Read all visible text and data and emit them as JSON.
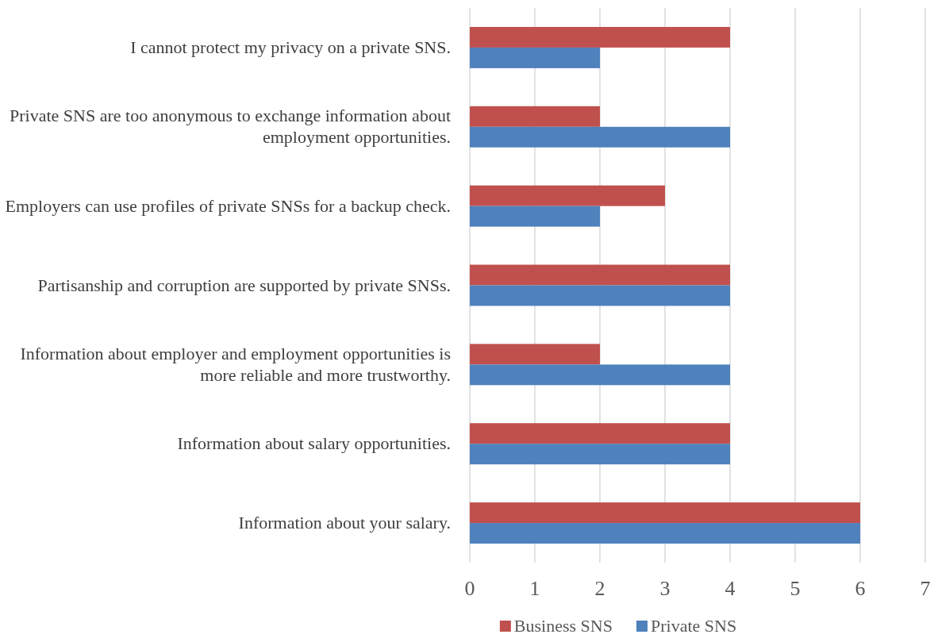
{
  "chart_data": {
    "type": "bar",
    "orientation": "horizontal",
    "categories": [
      "I cannot protect my privacy on a private SNS.",
      "Private SNS are too anonymous to exchange information about employment opportunities.",
      "Employers can use profiles of private SNSs for a backup check.",
      "Partisanship and corruption are supported by private SNSs.",
      "Information about employer and employment opportunities is more reliable and more trustworthy.",
      "Information about salary opportunities.",
      "Information about your salary."
    ],
    "series": [
      {
        "name": "Business SNS",
        "color": "#c0504d",
        "values": [
          4,
          2,
          3,
          4,
          2,
          4,
          6
        ]
      },
      {
        "name": "Private SNS",
        "color": "#4f81bd",
        "values": [
          2,
          4,
          2,
          4,
          4,
          4,
          6
        ]
      }
    ],
    "xlim": [
      0,
      7
    ],
    "xticks": [
      0,
      1,
      2,
      3,
      4,
      5,
      6,
      7
    ],
    "grid": "x",
    "legend": "bottom"
  }
}
